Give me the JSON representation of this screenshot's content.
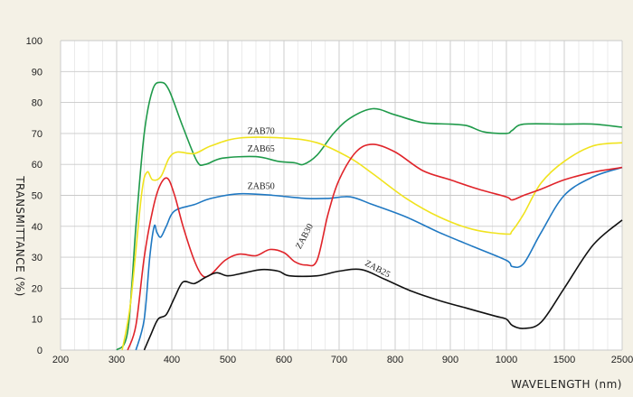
{
  "chart_data": {
    "type": "line",
    "xlabel": "WAVELENGTH (nm)",
    "ylabel": "TRANSMITTANCE (%)",
    "ylim": [
      0,
      100
    ],
    "y_ticks": [
      0,
      10,
      20,
      30,
      40,
      50,
      60,
      70,
      80,
      90,
      100
    ],
    "x_ticks": [
      "200",
      "300",
      "400",
      "500",
      "600",
      "700",
      "800",
      "900",
      "1000",
      "1500",
      "2500"
    ],
    "x_scale": "piecewise: linear 200-1000 nm, then 1000-1500, 1500-2500 compressed",
    "grid": true,
    "background_color": "#f4f1e6",
    "series": [
      {
        "name": "ZAB70",
        "color": "#1f9a4a",
        "points": [
          [
            300,
            0
          ],
          [
            320,
            6
          ],
          [
            335,
            40
          ],
          [
            350,
            70
          ],
          [
            365,
            84
          ],
          [
            380,
            86.5
          ],
          [
            395,
            84
          ],
          [
            420,
            72
          ],
          [
            445,
            61
          ],
          [
            460,
            60
          ],
          [
            490,
            62
          ],
          [
            550,
            62.5
          ],
          [
            590,
            61
          ],
          [
            620,
            60.5
          ],
          [
            635,
            60
          ],
          [
            660,
            63
          ],
          [
            690,
            70
          ],
          [
            720,
            75
          ],
          [
            760,
            78
          ],
          [
            800,
            76
          ],
          [
            850,
            73.5
          ],
          [
            900,
            73
          ],
          [
            930,
            72.5
          ],
          [
            960,
            70.5
          ],
          [
            1000,
            70
          ],
          [
            1050,
            71
          ],
          [
            1150,
            73
          ],
          [
            1500,
            73
          ],
          [
            2000,
            73
          ],
          [
            2500,
            72
          ]
        ]
      },
      {
        "name": "ZAB65",
        "color": "#f0e31e",
        "points": [
          [
            310,
            0
          ],
          [
            325,
            15
          ],
          [
            345,
            50
          ],
          [
            355,
            57.5
          ],
          [
            365,
            55
          ],
          [
            380,
            56
          ],
          [
            395,
            62
          ],
          [
            410,
            64
          ],
          [
            440,
            63.5
          ],
          [
            470,
            66
          ],
          [
            520,
            68.5
          ],
          [
            600,
            68.5
          ],
          [
            660,
            67
          ],
          [
            720,
            62
          ],
          [
            760,
            57
          ],
          [
            820,
            49
          ],
          [
            880,
            43
          ],
          [
            940,
            39
          ],
          [
            1000,
            37.5
          ],
          [
            1050,
            38.5
          ],
          [
            1150,
            44
          ],
          [
            1300,
            54
          ],
          [
            1500,
            61
          ],
          [
            2000,
            66
          ],
          [
            2500,
            67
          ]
        ]
      },
      {
        "name": "ZAB50",
        "color": "#1f78c2",
        "points": [
          [
            335,
            0
          ],
          [
            350,
            10
          ],
          [
            360,
            30
          ],
          [
            368,
            40
          ],
          [
            373,
            38
          ],
          [
            380,
            36.5
          ],
          [
            390,
            40
          ],
          [
            405,
            45
          ],
          [
            440,
            47
          ],
          [
            470,
            49
          ],
          [
            520,
            50.5
          ],
          [
            580,
            50
          ],
          [
            640,
            49
          ],
          [
            680,
            49
          ],
          [
            720,
            49.5
          ],
          [
            760,
            47
          ],
          [
            820,
            43
          ],
          [
            880,
            38
          ],
          [
            940,
            33.5
          ],
          [
            1000,
            29
          ],
          [
            1050,
            27
          ],
          [
            1150,
            28
          ],
          [
            1300,
            38
          ],
          [
            1500,
            50
          ],
          [
            2000,
            56
          ],
          [
            2500,
            59
          ]
        ]
      },
      {
        "name": "ZAB30",
        "color": "#e0242a",
        "points": [
          [
            320,
            0
          ],
          [
            335,
            8
          ],
          [
            350,
            30
          ],
          [
            365,
            45
          ],
          [
            378,
            53
          ],
          [
            392,
            55.5
          ],
          [
            405,
            50
          ],
          [
            420,
            40
          ],
          [
            440,
            29
          ],
          [
            455,
            24
          ],
          [
            470,
            24.5
          ],
          [
            495,
            29
          ],
          [
            520,
            31
          ],
          [
            550,
            30.5
          ],
          [
            575,
            32.5
          ],
          [
            600,
            31.5
          ],
          [
            620,
            28.5
          ],
          [
            640,
            27.5
          ],
          [
            660,
            29
          ],
          [
            680,
            44
          ],
          [
            700,
            55
          ],
          [
            730,
            64
          ],
          [
            760,
            66.5
          ],
          [
            800,
            64
          ],
          [
            850,
            58
          ],
          [
            900,
            55
          ],
          [
            950,
            52
          ],
          [
            1000,
            49.5
          ],
          [
            1050,
            48.5
          ],
          [
            1150,
            50
          ],
          [
            1300,
            52
          ],
          [
            1500,
            55
          ],
          [
            2000,
            57.5
          ],
          [
            2500,
            59
          ]
        ]
      },
      {
        "name": "ZAB25",
        "color": "#111111",
        "points": [
          [
            350,
            0
          ],
          [
            362,
            5
          ],
          [
            375,
            10
          ],
          [
            390,
            11.5
          ],
          [
            405,
            17
          ],
          [
            420,
            22
          ],
          [
            440,
            21.5
          ],
          [
            460,
            23.5
          ],
          [
            480,
            25
          ],
          [
            500,
            24
          ],
          [
            530,
            25
          ],
          [
            560,
            26
          ],
          [
            590,
            25.5
          ],
          [
            610,
            24
          ],
          [
            660,
            24
          ],
          [
            700,
            25.5
          ],
          [
            740,
            26
          ],
          [
            780,
            23
          ],
          [
            830,
            19
          ],
          [
            880,
            16
          ],
          [
            930,
            13.5
          ],
          [
            980,
            11
          ],
          [
            1000,
            10
          ],
          [
            1050,
            8
          ],
          [
            1150,
            7
          ],
          [
            1300,
            9
          ],
          [
            1500,
            20
          ],
          [
            2000,
            34
          ],
          [
            2500,
            42
          ]
        ]
      }
    ],
    "annotations": [
      {
        "text": "ZAB70",
        "x": 535,
        "y": 69.8,
        "rotate": 0
      },
      {
        "text": "ZAB65",
        "x": 535,
        "y": 64.2,
        "rotate": 0
      },
      {
        "text": "ZAB50",
        "x": 535,
        "y": 52,
        "rotate": 0
      },
      {
        "text": "ZAB30",
        "x": 630,
        "y": 32.5,
        "rotate": -62
      },
      {
        "text": "ZAB25",
        "x": 745,
        "y": 27.5,
        "rotate": 28
      }
    ]
  }
}
